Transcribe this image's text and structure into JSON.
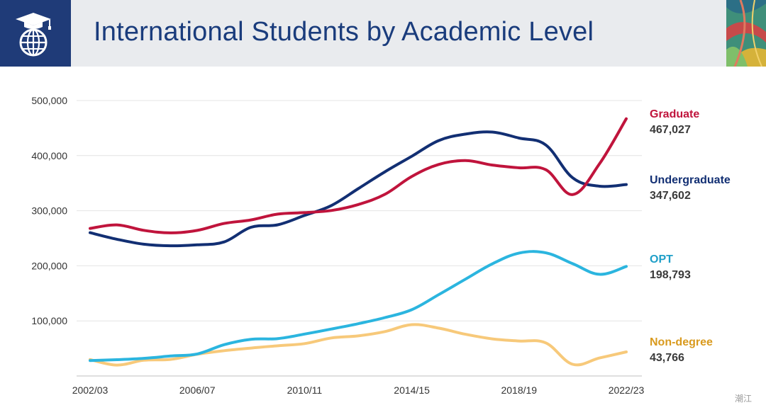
{
  "header": {
    "title": "International Students by Academic Level",
    "logo_icon": "graduation-globe-icon"
  },
  "watermark": "潮江",
  "chart_data": {
    "type": "line",
    "title": "International Students by Academic Level",
    "xlabel": "",
    "ylabel": "",
    "ylim": [
      0,
      500000
    ],
    "yticks": [
      100000,
      200000,
      300000,
      400000,
      500000
    ],
    "ytick_labels": [
      "100,000",
      "200,000",
      "300,000",
      "400,000",
      "500,000"
    ],
    "x": [
      "2002/03",
      "2003/04",
      "2004/05",
      "2005/06",
      "2006/07",
      "2007/08",
      "2008/09",
      "2009/10",
      "2010/11",
      "2011/12",
      "2012/13",
      "2013/14",
      "2014/15",
      "2015/16",
      "2016/17",
      "2017/18",
      "2018/19",
      "2019/20",
      "2020/21",
      "2021/22",
      "2022/23"
    ],
    "xtick_labels": [
      "2002/03",
      "2006/07",
      "2010/11",
      "2014/15",
      "2018/19",
      "2022/23"
    ],
    "grid": true,
    "legend": "right",
    "series": [
      {
        "name": "Graduate",
        "end_label": "467,027",
        "color": "#c0143c",
        "values": [
          267876,
          274310,
          264410,
          259717,
          264288,
          276842,
          283329,
          293885,
          296574,
          300430,
          311204,
          329854,
          362228,
          383935,
          391124,
          382953,
          377943,
          374435,
          329272,
          385097,
          467027
        ]
      },
      {
        "name": "Undergraduate",
        "end_label": "347,602",
        "color": "#122f73",
        "values": [
          260103,
          248200,
          239212,
          236342,
          238050,
          243360,
          269874,
          274431,
          291439,
          309342,
          339993,
          370724,
          398824,
          427313,
          439019,
          442746,
          431930,
          419321,
          359787,
          344532,
          347602
        ]
      },
      {
        "name": "OPT",
        "end_label": "198,793",
        "color": "#2bb5df",
        "values": [
          28008,
          29611,
          31974,
          36192,
          40016,
          56766,
          66601,
          67804,
          76031,
          85157,
          94919,
          105997,
          120287,
          147498,
          175695,
          203462,
          223085,
          223539,
          203885,
          184516,
          198793
        ]
      },
      {
        "name": "Non-degree",
        "end_label": "43,766",
        "color": "#f7c97a",
        "values": [
          29800,
          19800,
          28550,
          30050,
          39400,
          45900,
          50700,
          54800,
          58800,
          69000,
          72800,
          80600,
          93200,
          86900,
          75700,
          67400,
          63500,
          60000,
          21200,
          32600,
          43766
        ]
      }
    ]
  }
}
